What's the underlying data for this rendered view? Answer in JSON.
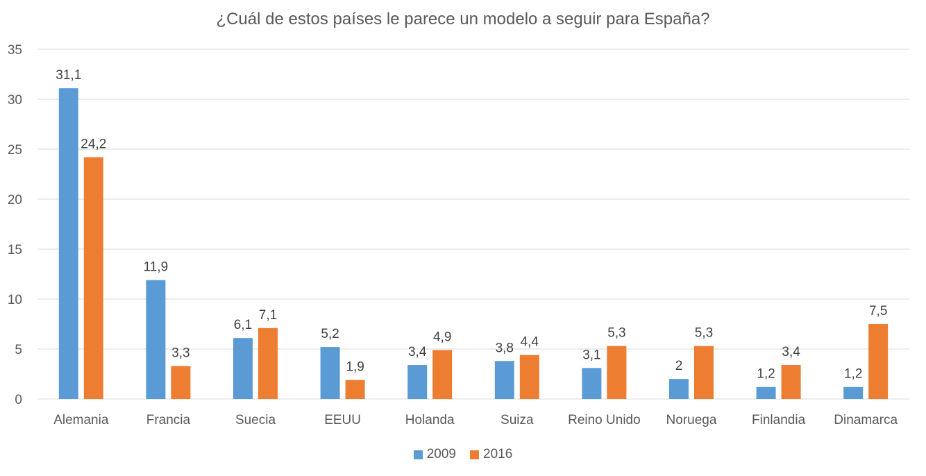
{
  "chart_data": {
    "type": "bar",
    "title": "¿Cuál de estos países le parece un modelo a seguir para España?",
    "categories": [
      "Alemania",
      "Francia",
      "Suecia",
      "EEUU",
      "Holanda",
      "Suiza",
      "Reino Unido",
      "Noruega",
      "Finlandia",
      "Dinamarca"
    ],
    "series": [
      {
        "name": "2009",
        "color": "#5B9BD5",
        "values": [
          31.1,
          11.9,
          6.1,
          5.2,
          3.4,
          3.8,
          3.1,
          2,
          1.2,
          1.2
        ],
        "labels": [
          "31,1",
          "11,9",
          "6,1",
          "5,2",
          "3,4",
          "3,8",
          "3,1",
          "2",
          "1,2",
          "1,2"
        ]
      },
      {
        "name": "2016",
        "color": "#ED7D31",
        "values": [
          24.2,
          3.3,
          7.1,
          1.9,
          4.9,
          4.4,
          5.3,
          5.3,
          3.4,
          7.5
        ],
        "labels": [
          "24,2",
          "3,3",
          "7,1",
          "1,9",
          "4,9",
          "4,4",
          "5,3",
          "5,3",
          "3,4",
          "7,5"
        ]
      }
    ],
    "ylim": [
      0,
      35
    ],
    "yticks": [
      "0",
      "5",
      "10",
      "15",
      "20",
      "25",
      "30",
      "35"
    ],
    "grid": true,
    "legend_position": "bottom"
  }
}
